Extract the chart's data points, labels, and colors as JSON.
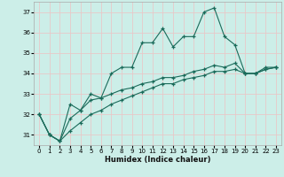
{
  "xlabel": "Humidex (Indice chaleur)",
  "bg_color": "#cceee8",
  "grid_color": "#e8c8c8",
  "line_color": "#1a6b5a",
  "x": [
    0,
    1,
    2,
    3,
    4,
    5,
    6,
    7,
    8,
    9,
    10,
    11,
    12,
    13,
    14,
    15,
    16,
    17,
    18,
    19,
    20,
    21,
    22,
    23
  ],
  "line_main": [
    32.0,
    31.0,
    30.7,
    32.5,
    32.2,
    33.0,
    32.8,
    34.0,
    34.3,
    34.3,
    35.5,
    35.5,
    36.2,
    35.3,
    35.8,
    35.8,
    37.0,
    37.2,
    35.8,
    35.4,
    34.0,
    34.0,
    34.3,
    34.3
  ],
  "line_low": [
    32.0,
    31.0,
    30.7,
    31.2,
    31.6,
    32.0,
    32.2,
    32.5,
    32.7,
    32.9,
    33.1,
    33.3,
    33.5,
    33.5,
    33.7,
    33.8,
    33.9,
    34.1,
    34.1,
    34.2,
    34.0,
    34.0,
    34.2,
    34.3
  ],
  "line_mid": [
    32.0,
    31.0,
    30.7,
    31.8,
    32.2,
    32.7,
    32.8,
    33.0,
    33.2,
    33.3,
    33.5,
    33.6,
    33.8,
    33.8,
    33.9,
    34.1,
    34.2,
    34.4,
    34.3,
    34.5,
    34.0,
    34.0,
    34.2,
    34.3
  ],
  "ylim": [
    30.5,
    37.5
  ],
  "xlim": [
    -0.5,
    23.5
  ],
  "yticks": [
    31,
    32,
    33,
    34,
    35,
    36,
    37
  ],
  "xticks": [
    0,
    1,
    2,
    3,
    4,
    5,
    6,
    7,
    8,
    9,
    10,
    11,
    12,
    13,
    14,
    15,
    16,
    17,
    18,
    19,
    20,
    21,
    22,
    23
  ]
}
